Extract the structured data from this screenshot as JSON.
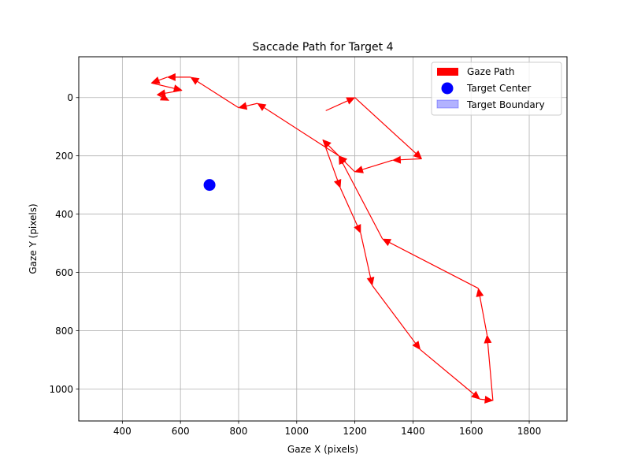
{
  "chart_data": {
    "type": "line",
    "title": "Saccade Path for Target 4",
    "xlabel": "Gaze X (pixels)",
    "ylabel": "Gaze Y (pixels)",
    "xlim": [
      250,
      1930
    ],
    "ylim": [
      1110,
      -140
    ],
    "y_inverted": true,
    "x_ticks": [
      400,
      600,
      800,
      1000,
      1200,
      1400,
      1600,
      1800
    ],
    "y_ticks": [
      0,
      200,
      400,
      600,
      800,
      1000
    ],
    "grid": true,
    "legend_position": "top-right",
    "legend": [
      {
        "label": "Gaze Path",
        "kind": "arrow",
        "color": "#ff0000"
      },
      {
        "label": "Target Center",
        "kind": "point",
        "color": "#0000ff"
      },
      {
        "label": "Target Boundary",
        "kind": "area",
        "color": "#0000ff"
      }
    ],
    "series": [
      {
        "name": "Gaze Path",
        "color": "#ff0000",
        "points": [
          {
            "x": 1100,
            "y": 45
          },
          {
            "x": 1200,
            "y": 0
          },
          {
            "x": 1430,
            "y": 210
          },
          {
            "x": 1330,
            "y": 215
          },
          {
            "x": 1200,
            "y": 255
          },
          {
            "x": 1145,
            "y": 200
          },
          {
            "x": 1090,
            "y": 145
          },
          {
            "x": 1150,
            "y": 310
          },
          {
            "x": 1220,
            "y": 465
          },
          {
            "x": 1260,
            "y": 645
          },
          {
            "x": 1425,
            "y": 865
          },
          {
            "x": 1630,
            "y": 1035
          },
          {
            "x": 1675,
            "y": 1040
          },
          {
            "x": 1655,
            "y": 815
          },
          {
            "x": 1625,
            "y": 655
          },
          {
            "x": 1295,
            "y": 485
          },
          {
            "x": 1145,
            "y": 200
          },
          {
            "x": 865,
            "y": 20
          },
          {
            "x": 800,
            "y": 35
          },
          {
            "x": 635,
            "y": -70
          },
          {
            "x": 555,
            "y": -70
          },
          {
            "x": 500,
            "y": -50
          },
          {
            "x": 605,
            "y": -25
          },
          {
            "x": 520,
            "y": -10
          },
          {
            "x": 560,
            "y": 10
          }
        ]
      }
    ],
    "target_center": {
      "x": 700,
      "y": 300,
      "color": "#0000ff"
    }
  }
}
